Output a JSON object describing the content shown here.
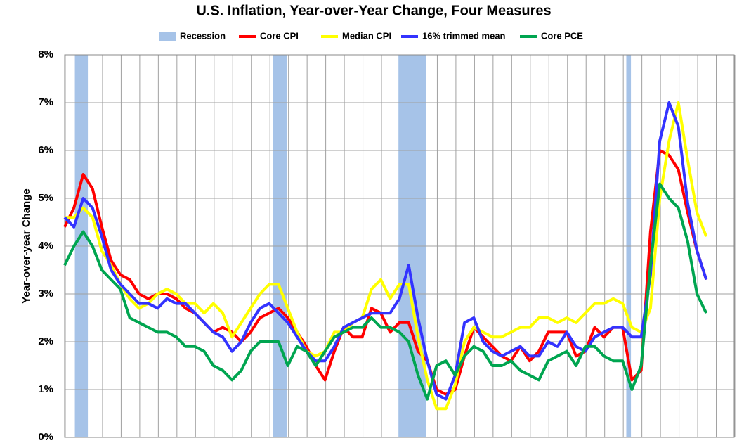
{
  "chart_data": {
    "type": "line",
    "title": "U.S. Inflation, Year-over-Year Change, Four Measures",
    "y_label": "Year-over-year Change",
    "xlim": [
      0,
      72
    ],
    "ylim": [
      0,
      8
    ],
    "yticks": [
      {
        "value": 0,
        "label": "0%"
      },
      {
        "value": 1,
        "label": "1%"
      },
      {
        "value": 2,
        "label": "2%"
      },
      {
        "value": 3,
        "label": "3%"
      },
      {
        "value": 4,
        "label": "4%"
      },
      {
        "value": 5,
        "label": "5%"
      },
      {
        "value": 6,
        "label": "6%"
      },
      {
        "value": 7,
        "label": "7%"
      },
      {
        "value": 8,
        "label": "8%"
      }
    ],
    "grid": true,
    "recessions": {
      "name": "Recession",
      "color": "#a6c3e8",
      "spans": [
        [
          1.1,
          2.5
        ],
        [
          22.4,
          23.9
        ],
        [
          35.9,
          38.9
        ],
        [
          60.4,
          60.9
        ]
      ]
    },
    "series": [
      {
        "name": "Core CPI",
        "color": "#ff0000",
        "values": [
          4.4,
          4.8,
          5.5,
          5.2,
          4.4,
          3.7,
          3.4,
          3.3,
          3.0,
          2.9,
          3.0,
          3.0,
          2.9,
          2.7,
          2.6,
          2.4,
          2.2,
          2.3,
          2.2,
          2.0,
          2.2,
          2.5,
          2.6,
          2.7,
          2.5,
          2.2,
          1.9,
          1.5,
          1.2,
          1.8,
          2.3,
          2.1,
          2.1,
          2.7,
          2.6,
          2.2,
          2.4,
          2.4,
          1.8,
          1.6,
          1.0,
          0.9,
          1.0,
          1.7,
          2.3,
          2.1,
          1.9,
          1.7,
          1.6,
          1.9,
          1.6,
          1.8,
          2.2,
          2.2,
          2.2,
          1.7,
          1.8,
          2.3,
          2.1,
          2.3,
          2.3,
          1.2,
          1.4,
          4.3,
          6.0,
          5.9,
          5.6,
          4.7,
          3.9,
          3.3
        ]
      },
      {
        "name": "Median CPI",
        "color": "#ffff00",
        "values": [
          4.6,
          4.6,
          4.8,
          4.6,
          3.9,
          3.6,
          3.2,
          2.9,
          2.7,
          2.8,
          3.0,
          3.1,
          3.0,
          2.8,
          2.8,
          2.6,
          2.8,
          2.6,
          2.1,
          2.4,
          2.7,
          3.0,
          3.2,
          3.2,
          2.7,
          2.2,
          1.8,
          1.7,
          1.8,
          2.2,
          2.2,
          2.4,
          2.5,
          3.1,
          3.3,
          2.9,
          3.2,
          3.2,
          2.1,
          1.2,
          0.6,
          0.6,
          1.1,
          2.0,
          2.3,
          2.2,
          2.1,
          2.1,
          2.2,
          2.3,
          2.3,
          2.5,
          2.5,
          2.4,
          2.5,
          2.4,
          2.6,
          2.8,
          2.8,
          2.9,
          2.8,
          2.3,
          2.2,
          2.7,
          5.0,
          6.2,
          7.0,
          5.8,
          4.7,
          4.2
        ]
      },
      {
        "name": "16% trimmed mean",
        "color": "#3333ff",
        "values": [
          4.6,
          4.4,
          5.0,
          4.8,
          4.2,
          3.5,
          3.2,
          3.0,
          2.8,
          2.8,
          2.7,
          2.9,
          2.8,
          2.8,
          2.6,
          2.4,
          2.2,
          2.1,
          1.8,
          2.0,
          2.4,
          2.7,
          2.8,
          2.6,
          2.4,
          2.1,
          1.8,
          1.6,
          1.6,
          1.9,
          2.3,
          2.4,
          2.5,
          2.6,
          2.6,
          2.6,
          2.9,
          3.6,
          2.5,
          1.6,
          0.9,
          0.8,
          1.3,
          2.4,
          2.5,
          2.0,
          1.8,
          1.7,
          1.8,
          1.9,
          1.7,
          1.7,
          2.0,
          1.9,
          2.2,
          1.9,
          1.8,
          2.1,
          2.2,
          2.3,
          2.3,
          2.1,
          2.1,
          3.4,
          6.2,
          7.0,
          6.5,
          4.9,
          3.9,
          3.3
        ]
      },
      {
        "name": "Core PCE",
        "color": "#00a550",
        "values": [
          3.6,
          4.0,
          4.3,
          4.0,
          3.5,
          3.3,
          3.1,
          2.5,
          2.4,
          2.3,
          2.2,
          2.2,
          2.1,
          1.9,
          1.9,
          1.8,
          1.5,
          1.4,
          1.2,
          1.4,
          1.8,
          2.0,
          2.0,
          2.0,
          1.5,
          1.9,
          1.8,
          1.5,
          1.8,
          2.1,
          2.2,
          2.3,
          2.3,
          2.5,
          2.3,
          2.3,
          2.2,
          2.0,
          1.3,
          0.8,
          1.5,
          1.6,
          1.3,
          1.7,
          1.9,
          1.8,
          1.5,
          1.5,
          1.6,
          1.4,
          1.3,
          1.2,
          1.6,
          1.7,
          1.8,
          1.5,
          1.9,
          1.9,
          1.7,
          1.6,
          1.6,
          1.0,
          1.5,
          3.6,
          5.3,
          5.0,
          4.8,
          4.1,
          3.0,
          2.6
        ]
      }
    ]
  }
}
